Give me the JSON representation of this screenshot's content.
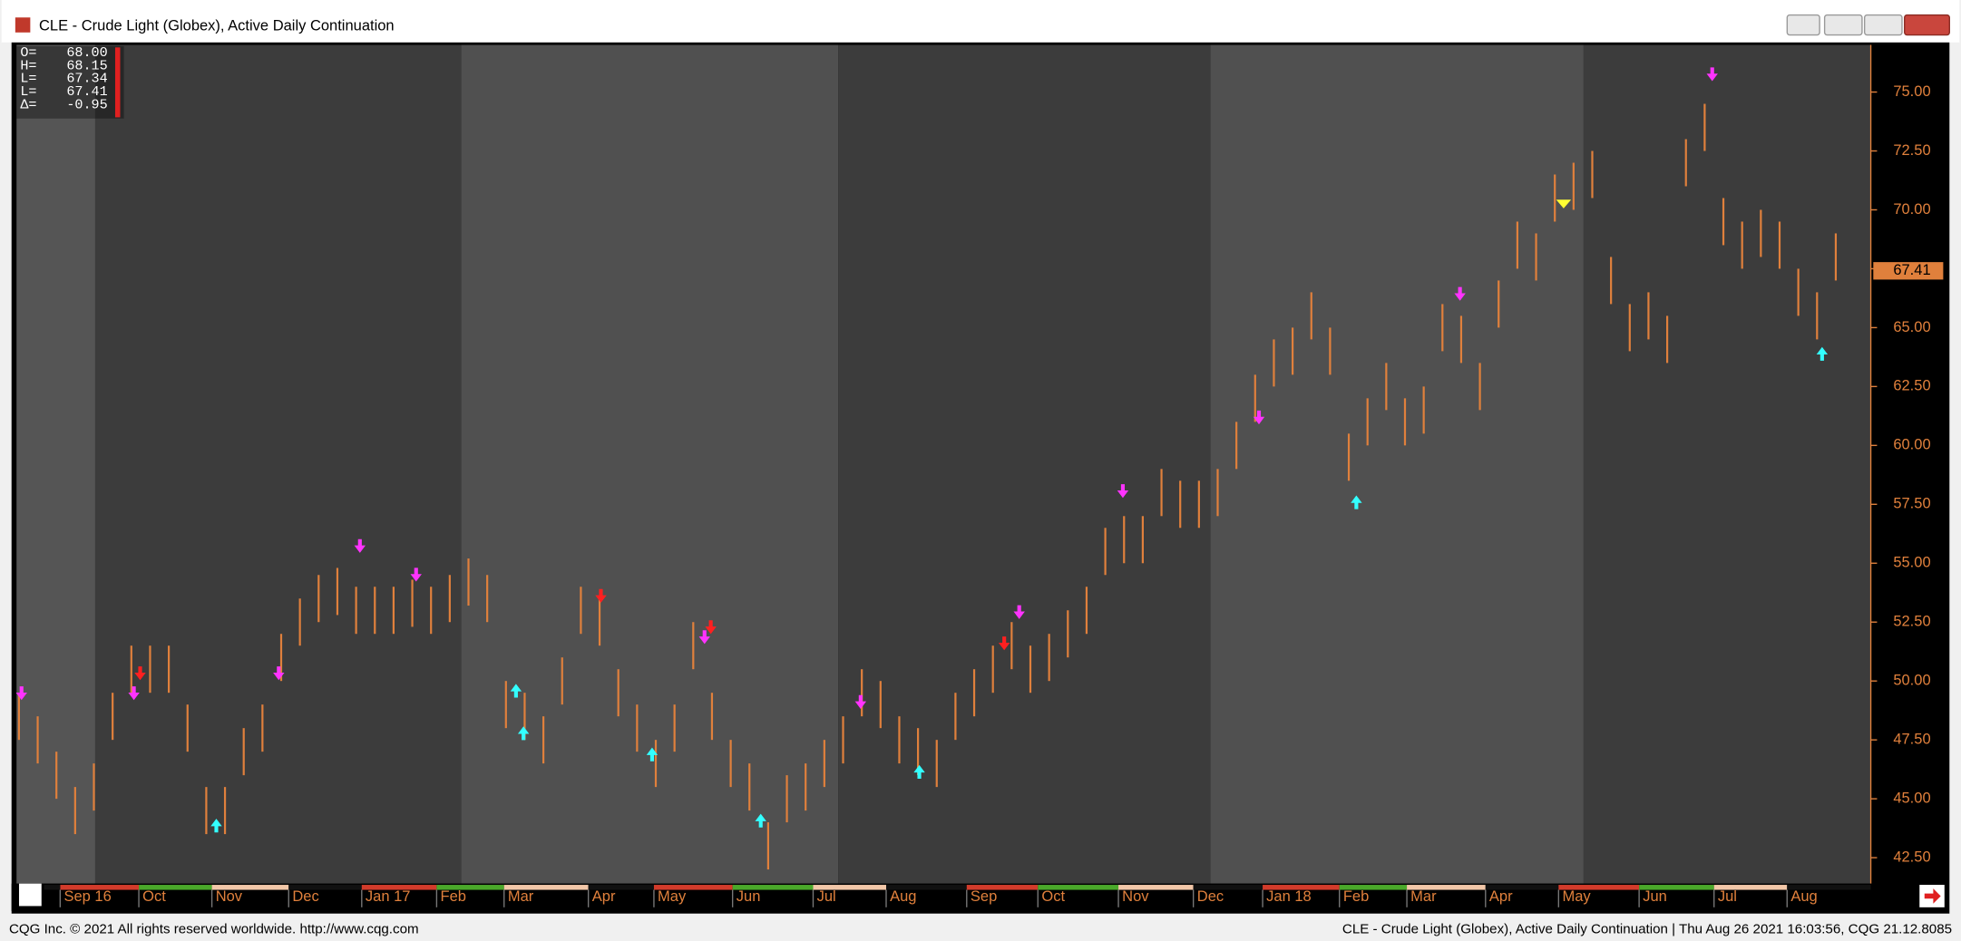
{
  "window": {
    "title": "CLE - Crude Light (Globex), Active Daily Continuation"
  },
  "footer": {
    "left": "CQG Inc. © 2021 All rights reserved worldwide. http://www.cqg.com",
    "right": "CLE - Crude Light (Globex), Active Daily Continuation | Thu Aug 26 2021 16:03:56, CQG 21.12.8085"
  },
  "ohlc": [
    {
      "label": "O=",
      "value": "68.00"
    },
    {
      "label": "H=",
      "value": "68.15"
    },
    {
      "label": "L=",
      "value": "67.34"
    },
    {
      "label": "L=",
      "value": "67.41"
    },
    {
      "label": "Δ=",
      "value": "-0.95"
    }
  ],
  "chart_data": {
    "type": "ohlc",
    "color": "#e0803c",
    "xlim": [
      -0.13,
      98.87
    ],
    "ylim": [
      41.4,
      77.0
    ],
    "yticks": [
      {
        "value": 42.5,
        "label": "42.50"
      },
      {
        "value": 45,
        "label": "45.00"
      },
      {
        "value": 47.5,
        "label": "47.50"
      },
      {
        "value": 50,
        "label": "50.00"
      },
      {
        "value": 52.5,
        "label": "52.50"
      },
      {
        "value": 55,
        "label": "55.00"
      },
      {
        "value": 57.5,
        "label": "57.50"
      },
      {
        "value": 60,
        "label": "60.00"
      },
      {
        "value": 62.5,
        "label": "62.50"
      },
      {
        "value": 65,
        "label": "65.00"
      },
      {
        "value": 67.5,
        "label": "67.50"
      },
      {
        "value": 70,
        "label": "70.00"
      },
      {
        "value": 72.5,
        "label": "72.50"
      },
      {
        "value": 75,
        "label": "75.00"
      }
    ],
    "xticks": [
      {
        "value": 2.2,
        "label": "Sep 16"
      },
      {
        "value": 6.4,
        "label": "Oct"
      },
      {
        "value": 10.3,
        "label": "Nov"
      },
      {
        "value": 14.4,
        "label": "Dec"
      },
      {
        "value": 18.3,
        "label": "Jan 17"
      },
      {
        "value": 22.3,
        "label": "Feb"
      },
      {
        "value": 25.9,
        "label": "Mar"
      },
      {
        "value": 30.4,
        "label": "Apr"
      },
      {
        "value": 33.9,
        "label": "May"
      },
      {
        "value": 38.1,
        "label": "Jun"
      },
      {
        "value": 42.4,
        "label": "Jul"
      },
      {
        "value": 46.3,
        "label": "Aug"
      },
      {
        "value": 50.6,
        "label": "Sep"
      },
      {
        "value": 54.4,
        "label": "Oct"
      },
      {
        "value": 58.7,
        "label": "Nov"
      },
      {
        "value": 62.7,
        "label": "Dec"
      },
      {
        "value": 66.4,
        "label": "Jan 18"
      },
      {
        "value": 70.5,
        "label": "Feb"
      },
      {
        "value": 74.1,
        "label": "Mar"
      },
      {
        "value": 78.3,
        "label": "Apr"
      },
      {
        "value": 82.2,
        "label": "May"
      },
      {
        "value": 86.5,
        "label": "Jun"
      },
      {
        "value": 90.5,
        "label": "Jul"
      },
      {
        "value": 94.4,
        "label": "Aug"
      }
    ],
    "high": [
      49.5,
      48.5,
      47,
      45.5,
      46.5,
      49.5,
      51.5,
      51.5,
      51.5,
      49,
      45.5,
      45.5,
      48,
      49,
      52,
      53.5,
      54.5,
      54.8,
      54,
      54,
      54,
      54.3,
      54,
      54.5,
      55.2,
      54.5,
      50,
      49.5,
      48.5,
      51,
      54,
      53.5,
      50.5,
      49,
      47.5,
      49,
      52.5,
      49.5,
      47.5,
      46.5,
      44,
      46,
      46.5,
      47.5,
      48.5,
      50.5,
      50,
      48.5,
      48,
      47.5,
      49.5,
      50.5,
      51.5,
      52.5,
      51.5,
      52,
      53,
      54,
      56.5,
      57,
      57,
      59,
      58.5,
      58.5,
      59,
      61,
      63,
      64.5,
      65,
      66.5,
      65,
      60.5,
      62,
      63.5,
      62,
      62.5,
      66,
      65.5,
      63.5,
      67,
      69.5,
      69,
      71.5,
      72,
      72.5,
      68,
      66,
      66.5,
      65.5,
      73,
      74.5,
      70.5,
      69.5,
      70,
      69.5,
      67.5,
      66.5,
      69
    ],
    "low": [
      47.5,
      46.5,
      45,
      43.5,
      44.5,
      47.5,
      49.5,
      49.5,
      49.5,
      47,
      43.5,
      43.5,
      46,
      47,
      50,
      51.5,
      52.5,
      52.8,
      52,
      52,
      52,
      52.3,
      52,
      52.5,
      53.2,
      52.5,
      48,
      47.5,
      46.5,
      49,
      52,
      51.5,
      48.5,
      47,
      45.5,
      47,
      50.5,
      47.5,
      45.5,
      44.5,
      42,
      44,
      44.5,
      45.5,
      46.5,
      48.5,
      48,
      46.5,
      46,
      45.5,
      47.5,
      48.5,
      49.5,
      50.5,
      49.5,
      50,
      51,
      52,
      54.5,
      55,
      55,
      57,
      56.5,
      56.5,
      57,
      59,
      61,
      62.5,
      63,
      64.5,
      63,
      58.5,
      60,
      61.5,
      60,
      60.5,
      64,
      63.5,
      61.5,
      65,
      67.5,
      67,
      69.5,
      70,
      70.5,
      66,
      64,
      64.5,
      63.5,
      71,
      72.5,
      68.5,
      67.5,
      68,
      67.5,
      65.5,
      64.5,
      67
    ],
    "last_price": {
      "value": 67.41,
      "label": "67.41"
    }
  }
}
